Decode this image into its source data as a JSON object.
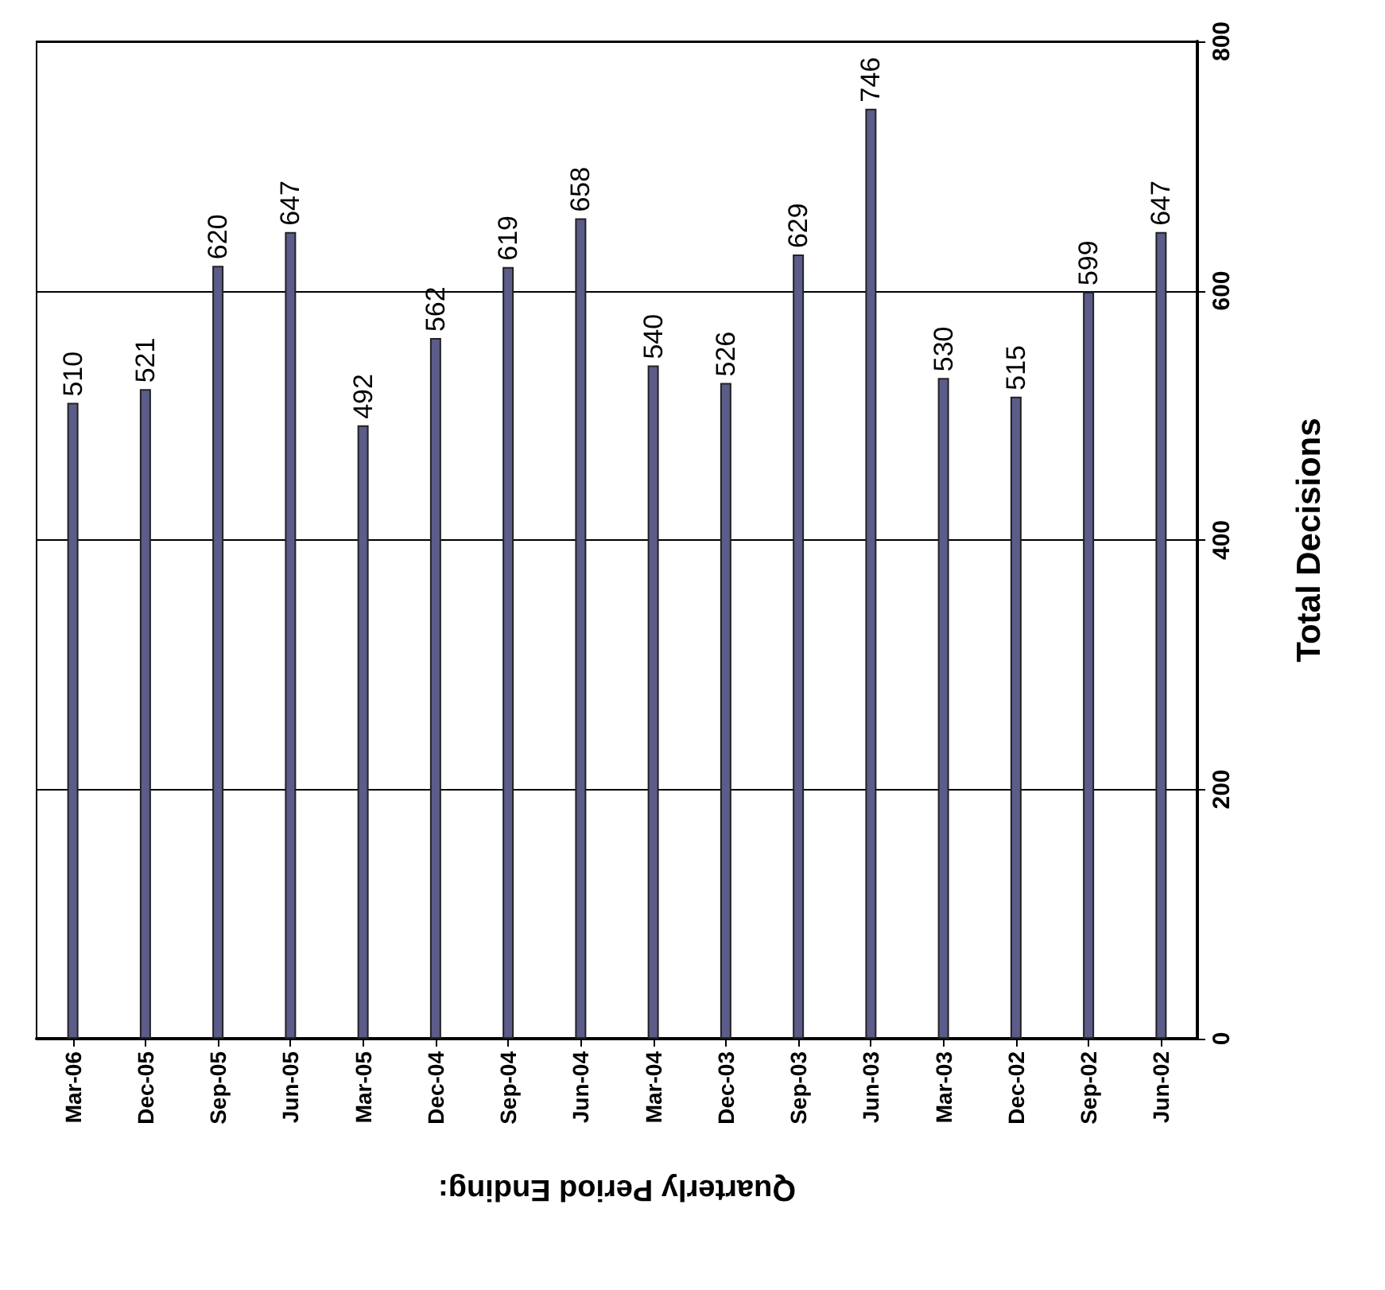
{
  "chart_data": {
    "type": "bar",
    "xlabel": "Quarterly Period Ending:",
    "ylabel": "Total Decisions",
    "categories": [
      "Mar-06",
      "Dec-05",
      "Sep-05",
      "Jun-05",
      "Mar-05",
      "Dec-04",
      "Sep-04",
      "Jun-04",
      "Mar-04",
      "Dec-03",
      "Sep-03",
      "Jun-03",
      "Mar-03",
      "Dec-02",
      "Sep-02",
      "Jun-02"
    ],
    "values": [
      510,
      521,
      620,
      647,
      492,
      562,
      619,
      658,
      540,
      526,
      629,
      746,
      530,
      515,
      599,
      647
    ],
    "color": "#5c5c8a",
    "ylim": [
      0,
      800
    ],
    "yticks": [
      0,
      200,
      400,
      600,
      800
    ],
    "grid": "y",
    "data_labels": true
  }
}
